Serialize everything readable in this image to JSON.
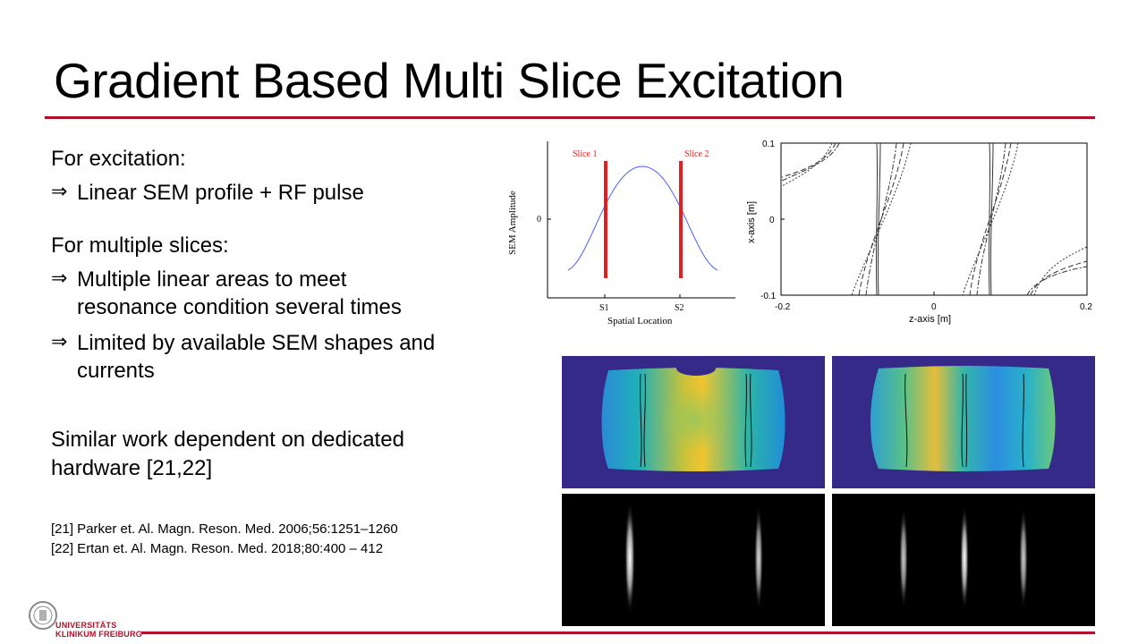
{
  "slide": {
    "title": "Gradient Based Multi Slice Excitation",
    "accent_color": "#b0102a"
  },
  "body": {
    "excitation_heading": "For excitation:",
    "excitation_point": "Linear SEM profile + RF pulse",
    "multi_heading": "For multiple slices:",
    "multi_point1_line1": "Multiple linear areas to meet",
    "multi_point1_line2": "resonance condition several times",
    "multi_point2_line1": "Limited by available SEM shapes and",
    "multi_point2_line2": "currents",
    "similar_line1": "Similar work dependent on dedicated",
    "similar_line2": "hardware [21,22]",
    "arrow_symbol": "⇒"
  },
  "references": [
    "[21] Parker et. Al. Magn. Reson. Med. 2006;56:1251–1260",
    "[22] Ertan et. Al. Magn. Reson. Med. 2018;80:400 – 412"
  ],
  "figure1": {
    "ylabel": "SEM Amplitude",
    "xlabel": "Spatial Location",
    "ytick": "0",
    "xticks": [
      "S1",
      "S2"
    ],
    "slice_labels": [
      "Slice 1",
      "Slice 2"
    ],
    "curve_color": "#4a5cff",
    "slice_color": "#e02020"
  },
  "figure2": {
    "xlabel": "z-axis [m]",
    "ylabel": "x-axis [m]",
    "xticks": [
      "-0.2",
      "0",
      "0.2"
    ],
    "yticks": [
      "0.1",
      "0",
      "-0.1"
    ]
  },
  "logo": {
    "line1": "UNIVERSITÄTS",
    "line2": "KLINIKUM FREIBURG"
  }
}
